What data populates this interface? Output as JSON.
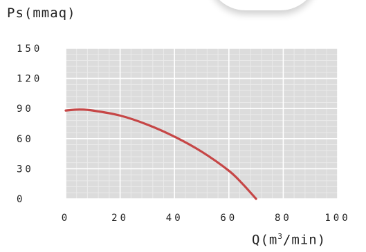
{
  "chart_data": {
    "type": "line",
    "ylabel": "Ps(mmaq)",
    "xlabel_base": "Q(m",
    "xlabel_sup": "3",
    "xlabel_tail": "/min)",
    "xlim": [
      0,
      100
    ],
    "ylim": [
      0,
      150
    ],
    "x_ticks": [
      0,
      20,
      40,
      60,
      80,
      100
    ],
    "y_ticks": [
      0,
      30,
      60,
      90,
      120,
      150
    ],
    "x_tick_labels": [
      "0",
      "20",
      "40",
      "60",
      "80",
      "100"
    ],
    "y_tick_labels": [
      "0",
      "30",
      "60",
      "90",
      "120",
      "150"
    ],
    "grid": true,
    "series": [
      {
        "color": "#c64646",
        "x": [
          0,
          5,
          10,
          20,
          30,
          40,
          50,
          60,
          65,
          70
        ],
        "y": [
          88,
          89,
          88,
          83,
          74,
          62,
          47,
          28,
          15,
          0
        ]
      }
    ]
  }
}
